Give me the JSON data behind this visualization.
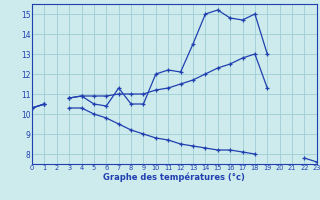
{
  "xlabel": "Graphe des températures (°c)",
  "bg_color": "#cdeaed",
  "line_color": "#2040b0",
  "grid_color": "#9ecdd4",
  "hours": [
    0,
    1,
    2,
    3,
    4,
    5,
    6,
    7,
    8,
    9,
    10,
    11,
    12,
    13,
    14,
    15,
    16,
    17,
    18,
    19,
    20,
    21,
    22,
    23
  ],
  "line_upper": [
    10.3,
    10.5,
    null,
    10.8,
    10.9,
    10.5,
    10.4,
    11.3,
    10.5,
    10.5,
    12.0,
    12.2,
    12.1,
    13.5,
    15.0,
    15.2,
    14.8,
    14.7,
    15.0,
    13.0,
    null,
    null,
    null,
    null
  ],
  "line_mid": [
    10.3,
    10.5,
    null,
    10.8,
    10.9,
    10.9,
    10.9,
    11.0,
    11.0,
    11.0,
    11.2,
    11.3,
    11.5,
    11.7,
    12.0,
    12.3,
    12.5,
    12.8,
    13.0,
    11.3,
    null,
    null,
    null,
    null
  ],
  "line_lower": [
    10.3,
    10.5,
    null,
    10.3,
    10.3,
    10.0,
    9.8,
    9.5,
    9.2,
    9.0,
    8.8,
    8.7,
    8.5,
    8.4,
    8.3,
    8.2,
    8.2,
    8.1,
    8.0,
    null,
    null,
    null,
    7.8,
    7.6
  ],
  "ylim": [
    7.5,
    15.5
  ],
  "xlim": [
    0,
    23
  ],
  "yticks": [
    8,
    9,
    10,
    11,
    12,
    13,
    14,
    15
  ],
  "xticks": [
    0,
    1,
    2,
    3,
    4,
    5,
    6,
    7,
    8,
    9,
    10,
    11,
    12,
    13,
    14,
    15,
    16,
    17,
    18,
    19,
    20,
    21,
    22,
    23
  ]
}
